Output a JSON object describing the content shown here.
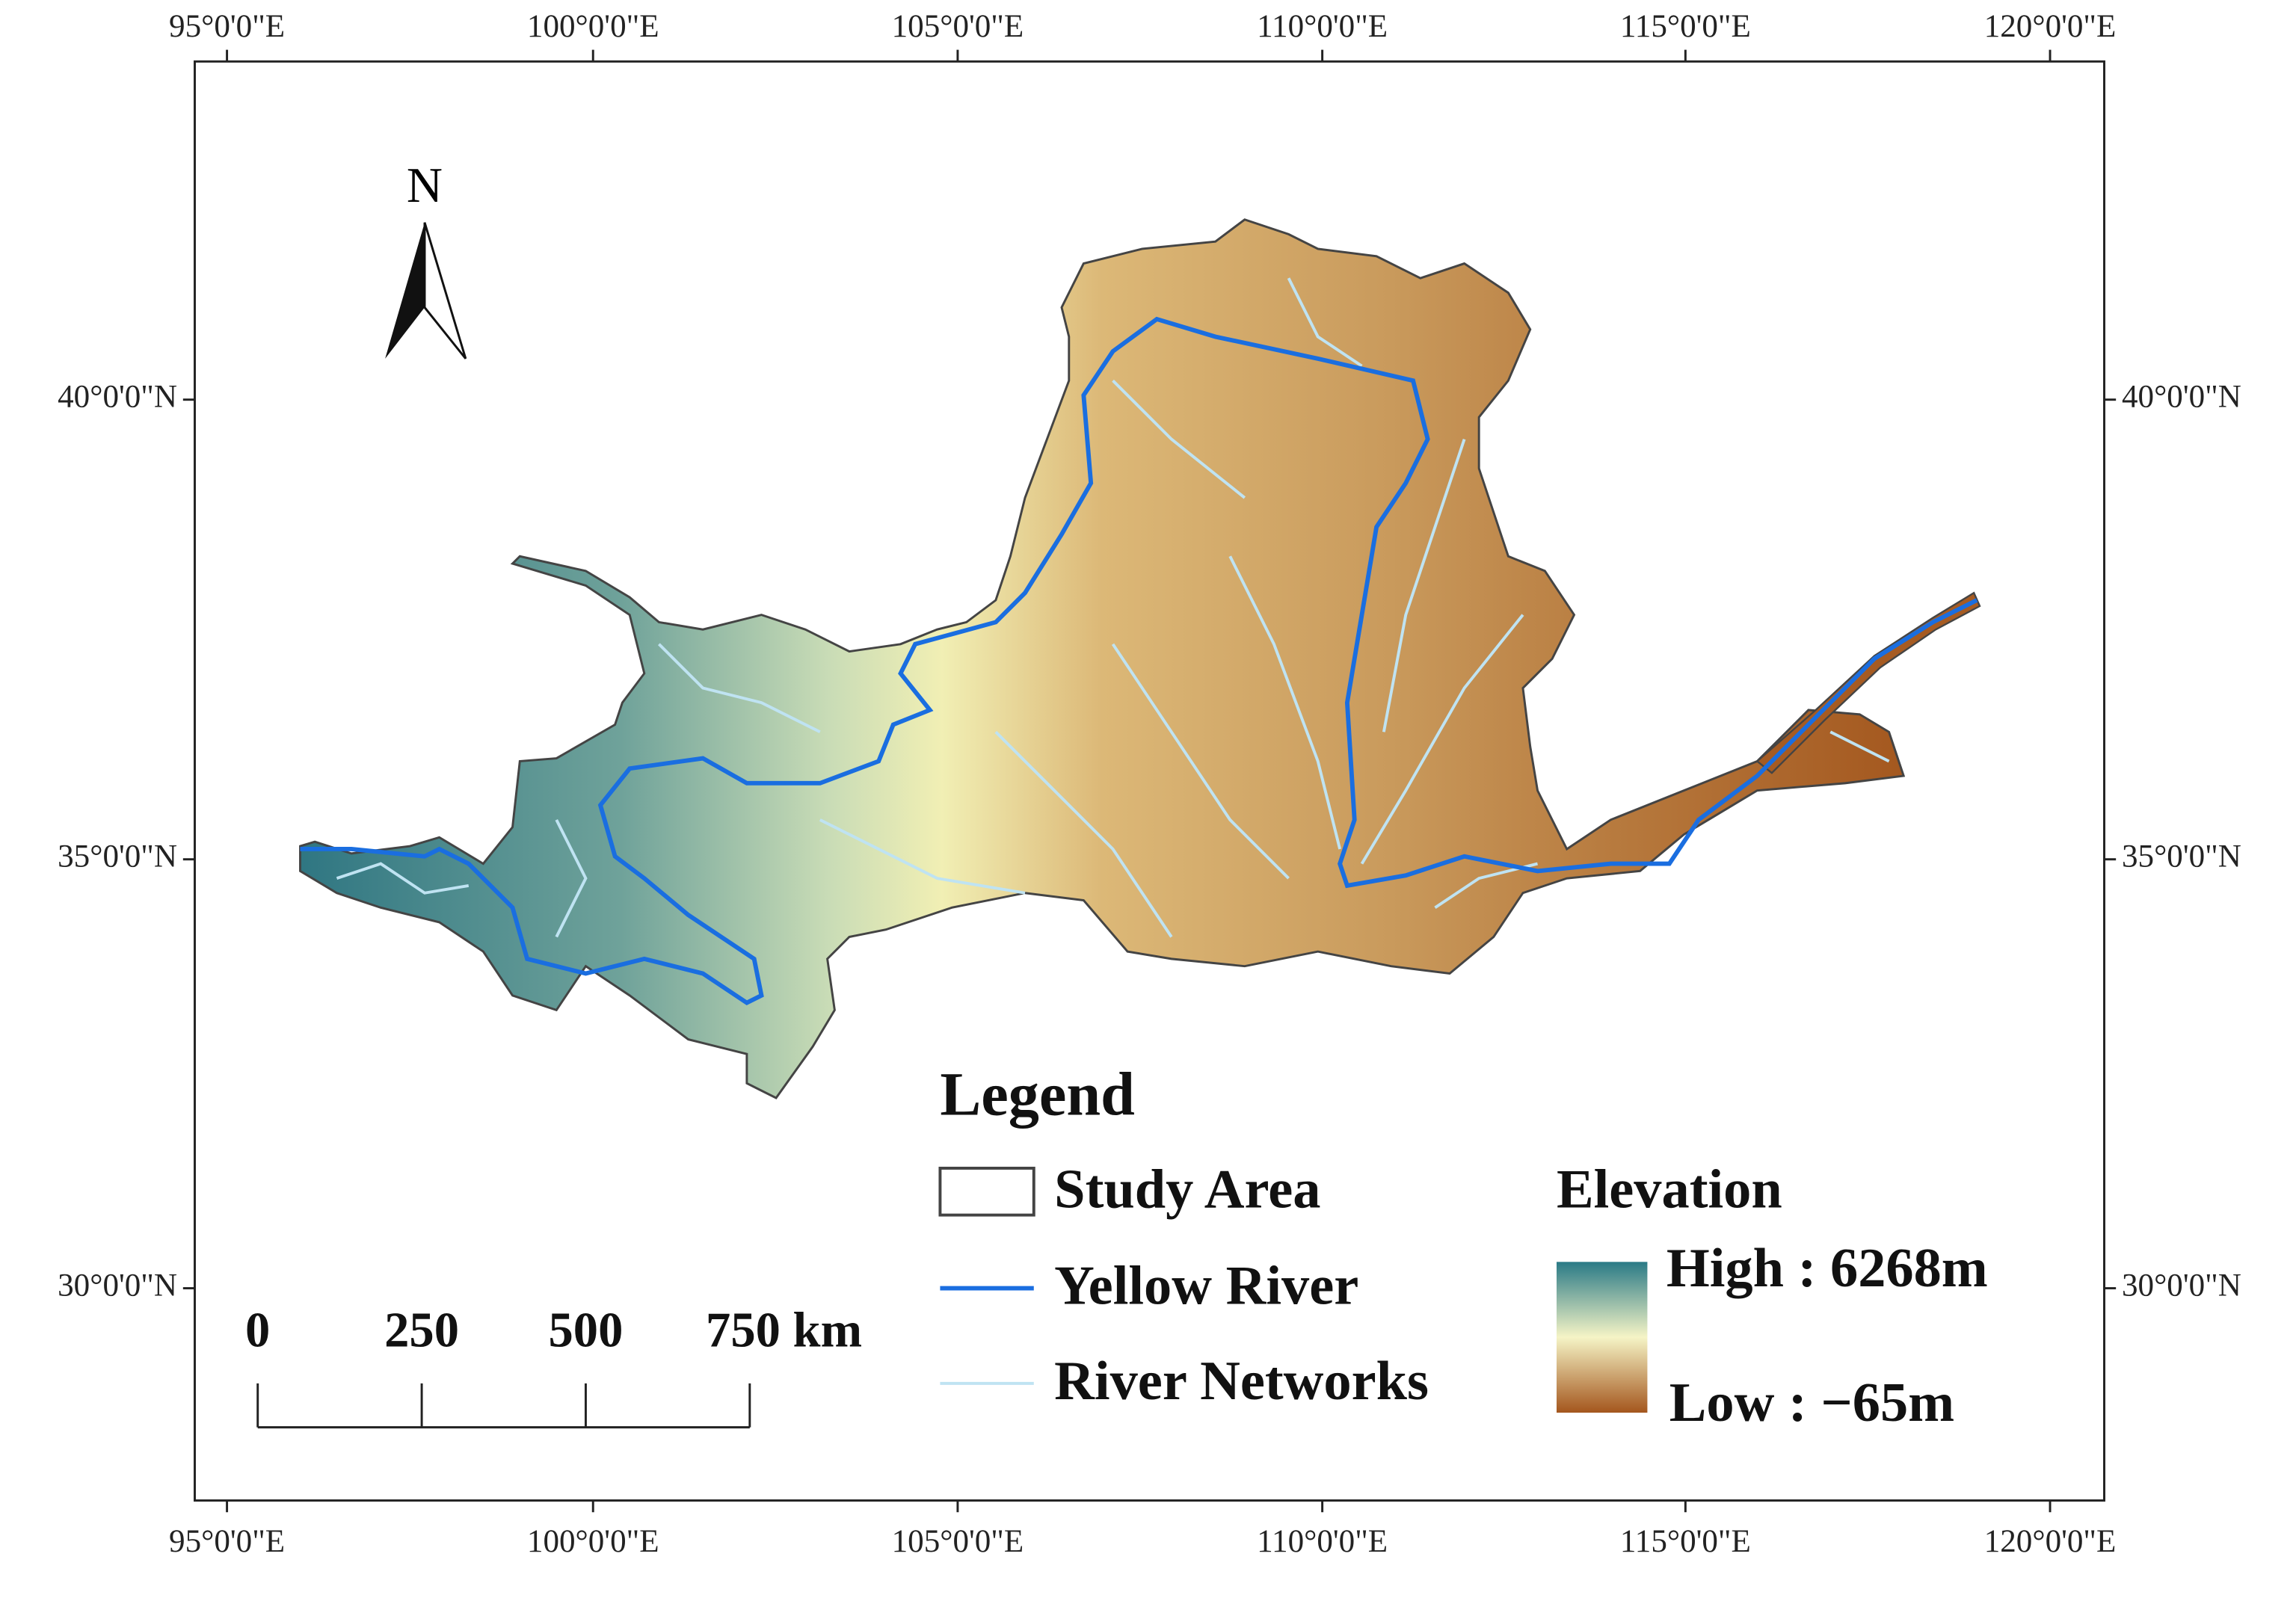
{
  "map": {
    "lon_labels": [
      "95°0'0\"E",
      "100°0'0\"E",
      "105°0'0\"E",
      "110°0'0\"E",
      "115°0'0\"E",
      "120°0'0\"E"
    ],
    "lat_labels": [
      "40°0'0\"N",
      "35°0'0\"N",
      "30°0'0\"N"
    ],
    "north": "N",
    "scale_bar": {
      "labels": [
        "0",
        "250",
        "500",
        "750 km"
      ]
    },
    "legend": {
      "title": "Legend",
      "items": [
        "Study Area",
        "Yellow River",
        "River Networks"
      ],
      "elevation": {
        "title": "Elevation",
        "high": "High : 6268m",
        "low": "Low : −65m"
      }
    }
  }
}
